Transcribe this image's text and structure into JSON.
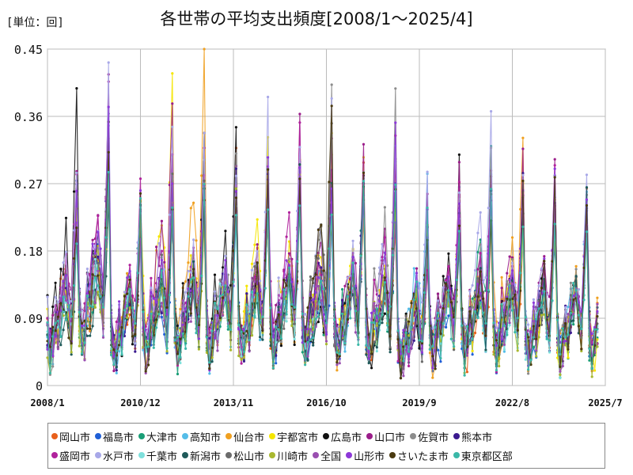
{
  "unit_label": "[単位：回]",
  "chart_data": {
    "type": "line",
    "title": "各世帯の平均支出頻度[2008/1～2025/4]",
    "xlabel": "",
    "ylabel": "",
    "x_tick_labels": [
      "2008/1",
      "2010/12",
      "2013/11",
      "2016/10",
      "2019/9",
      "2022/8",
      "2025/7"
    ],
    "y_tick_labels": [
      "0",
      "0.09",
      "0.18",
      "0.27",
      "0.36",
      "0.45"
    ],
    "y_ticks": [
      0,
      0.09,
      0.18,
      0.27,
      0.36,
      0.45
    ],
    "ylim": [
      0,
      0.45
    ],
    "x_start": "2008/1",
    "x_end": "2025/7",
    "grid": true,
    "legend_position": "bottom",
    "seasonal_peak_month": 12,
    "series": [
      {
        "name": "岡山市",
        "color": "#e8601c",
        "peaks": [
          0.27,
          0.3,
          0.22,
          0.23,
          0.26,
          0.29,
          0.26,
          0.25,
          0.26,
          0.28,
          0.22,
          0.18,
          0.26,
          0.21,
          0.22,
          0.22,
          0.24
        ]
      },
      {
        "name": "福島市",
        "color": "#1f5fd6",
        "peaks": [
          0.25,
          0.33,
          0.24,
          0.22,
          0.28,
          0.27,
          0.29,
          0.26,
          0.22,
          0.27,
          0.25,
          0.2,
          0.2,
          0.23,
          0.24,
          0.2,
          0.23
        ]
      },
      {
        "name": "大津市",
        "color": "#1a9e77",
        "peaks": [
          0.24,
          0.28,
          0.26,
          0.28,
          0.24,
          0.25,
          0.27,
          0.28,
          0.23,
          0.29,
          0.23,
          0.17,
          0.24,
          0.32,
          0.26,
          0.22,
          0.21
        ]
      },
      {
        "name": "高知市",
        "color": "#55bde8",
        "peaks": [
          0.22,
          0.27,
          0.21,
          0.24,
          0.25,
          0.24,
          0.22,
          0.27,
          0.26,
          0.25,
          0.29,
          0.28,
          0.25,
          0.27,
          0.25,
          0.24,
          0.28
        ]
      },
      {
        "name": "仙台市",
        "color": "#f0a020",
        "peaks": [
          0.25,
          0.34,
          0.25,
          0.27,
          0.44,
          0.26,
          0.28,
          0.25,
          0.29,
          0.28,
          0.26,
          0.2,
          0.22,
          0.26,
          0.36,
          0.22,
          0.25
        ]
      },
      {
        "name": "宇都宮市",
        "color": "#f5e600",
        "peaks": [
          0.27,
          0.33,
          0.24,
          0.4,
          0.3,
          0.25,
          0.35,
          0.33,
          0.31,
          0.29,
          0.27,
          0.21,
          0.23,
          0.25,
          0.28,
          0.23,
          0.22
        ]
      },
      {
        "name": "広島市",
        "color": "#111111",
        "peaks": [
          0.37,
          0.36,
          0.18,
          0.25,
          0.31,
          0.35,
          0.25,
          0.26,
          0.23,
          0.27,
          0.22,
          0.19,
          0.29,
          0.26,
          0.25,
          0.26,
          0.24
        ]
      },
      {
        "name": "山口市",
        "color": "#9b1d8a",
        "peaks": [
          0.31,
          0.4,
          0.24,
          0.39,
          0.33,
          0.27,
          0.3,
          0.36,
          0.3,
          0.35,
          0.33,
          0.24,
          0.28,
          0.28,
          0.3,
          0.3,
          0.24
        ]
      },
      {
        "name": "佐賀市",
        "color": "#8c8c8c",
        "peaks": [
          0.24,
          0.38,
          0.25,
          0.27,
          0.28,
          0.3,
          0.27,
          0.28,
          0.39,
          0.26,
          0.38,
          0.2,
          0.25,
          0.3,
          0.27,
          0.25,
          0.26
        ]
      },
      {
        "name": "熊本市",
        "color": "#3b1a8f",
        "peaks": [
          0.26,
          0.36,
          0.22,
          0.23,
          0.25,
          0.27,
          0.28,
          0.3,
          0.29,
          0.29,
          0.26,
          0.18,
          0.25,
          0.24,
          0.26,
          0.23,
          0.23
        ]
      },
      {
        "name": "盛岡市",
        "color": "#b0229c",
        "peaks": [
          0.28,
          0.4,
          0.28,
          0.33,
          0.29,
          0.26,
          0.27,
          0.37,
          0.31,
          0.27,
          0.32,
          0.18,
          0.26,
          0.28,
          0.25,
          0.28,
          0.24
        ]
      },
      {
        "name": "水戸市",
        "color": "#a8a8e8",
        "peaks": [
          0.3,
          0.41,
          0.26,
          0.34,
          0.32,
          0.28,
          0.38,
          0.33,
          0.39,
          0.3,
          0.34,
          0.26,
          0.26,
          0.38,
          0.28,
          0.29,
          0.27
        ]
      },
      {
        "name": "千葉市",
        "color": "#7fe0dc",
        "peaks": [
          0.22,
          0.29,
          0.23,
          0.26,
          0.24,
          0.26,
          0.25,
          0.24,
          0.25,
          0.24,
          0.24,
          0.2,
          0.22,
          0.23,
          0.22,
          0.21,
          0.22
        ]
      },
      {
        "name": "新潟市",
        "color": "#1f5a5a",
        "peaks": [
          0.2,
          0.25,
          0.24,
          0.24,
          0.25,
          0.26,
          0.23,
          0.27,
          0.25,
          0.26,
          0.23,
          0.19,
          0.23,
          0.24,
          0.24,
          0.22,
          0.24
        ]
      },
      {
        "name": "松山市",
        "color": "#6b6b6b",
        "peaks": [
          0.22,
          0.33,
          0.24,
          0.27,
          0.26,
          0.25,
          0.29,
          0.25,
          0.38,
          0.27,
          0.25,
          0.19,
          0.22,
          0.25,
          0.24,
          0.23,
          0.22
        ]
      },
      {
        "name": "川崎市",
        "color": "#a9b830",
        "peaks": [
          0.21,
          0.27,
          0.22,
          0.23,
          0.24,
          0.24,
          0.23,
          0.26,
          0.24,
          0.25,
          0.24,
          0.2,
          0.22,
          0.24,
          0.23,
          0.22,
          0.23
        ]
      },
      {
        "name": "全国",
        "color": "#9a4fb0",
        "peaks": [
          0.22,
          0.27,
          0.22,
          0.24,
          0.24,
          0.25,
          0.24,
          0.26,
          0.25,
          0.25,
          0.24,
          0.19,
          0.22,
          0.24,
          0.23,
          0.22,
          0.23
        ]
      },
      {
        "name": "山形市",
        "color": "#8d38d8",
        "peaks": [
          0.24,
          0.4,
          0.26,
          0.3,
          0.27,
          0.26,
          0.28,
          0.3,
          0.29,
          0.27,
          0.33,
          0.22,
          0.27,
          0.26,
          0.25,
          0.29,
          0.24
        ]
      },
      {
        "name": "さいたま市",
        "color": "#4a3a10",
        "peaks": [
          0.23,
          0.3,
          0.23,
          0.25,
          0.25,
          0.27,
          0.26,
          0.27,
          0.4,
          0.27,
          0.25,
          0.2,
          0.23,
          0.25,
          0.25,
          0.25,
          0.23
        ]
      },
      {
        "name": "東京都区部",
        "color": "#3bb8a8",
        "peaks": [
          0.21,
          0.28,
          0.23,
          0.24,
          0.24,
          0.25,
          0.24,
          0.26,
          0.25,
          0.25,
          0.25,
          0.21,
          0.22,
          0.24,
          0.23,
          0.22,
          0.23
        ]
      }
    ]
  }
}
